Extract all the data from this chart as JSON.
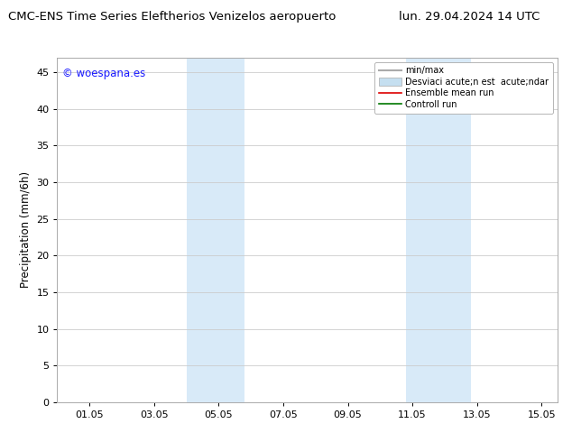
{
  "title_left": "CMC-ENS Time Series Eleftherios Venizelos aeropuerto",
  "title_right": "lun. 29.04.2024 14 UTC",
  "ylabel": "Precipitation (mm/6h)",
  "watermark": "© woespana.es",
  "watermark_color": "#1a1aff",
  "xlim_start": 0.0,
  "xlim_end": 15.5,
  "ylim_bottom": 0,
  "ylim_top": 47,
  "yticks": [
    0,
    5,
    10,
    15,
    20,
    25,
    30,
    35,
    40,
    45
  ],
  "xtick_labels": [
    "01.05",
    "03.05",
    "05.05",
    "07.05",
    "09.05",
    "11.05",
    "13.05",
    "15.05"
  ],
  "xtick_positions": [
    1,
    3,
    5,
    7,
    9,
    11,
    13,
    15
  ],
  "shaded_regions": [
    {
      "x_start": 4.0,
      "x_end": 5.8,
      "color": "#d8eaf8"
    },
    {
      "x_start": 10.8,
      "x_end": 12.8,
      "color": "#d8eaf8"
    }
  ],
  "legend_entries": [
    {
      "label": "min/max",
      "color": "#aaaaaa",
      "lw": 1.5
    },
    {
      "label": "Desviaci acute;n est  acute;ndar",
      "color": "#c5dff0",
      "lw": 7
    },
    {
      "label": "Ensemble mean run",
      "color": "#dd0000",
      "lw": 1.2
    },
    {
      "label": "Controll run",
      "color": "#007700",
      "lw": 1.2
    }
  ],
  "bg_color": "#ffffff",
  "plot_bg_color": "#ffffff",
  "grid_color": "#cccccc",
  "title_fontsize": 9.5,
  "ylabel_fontsize": 8.5,
  "tick_fontsize": 8,
  "watermark_fontsize": 8.5,
  "legend_fontsize": 7
}
